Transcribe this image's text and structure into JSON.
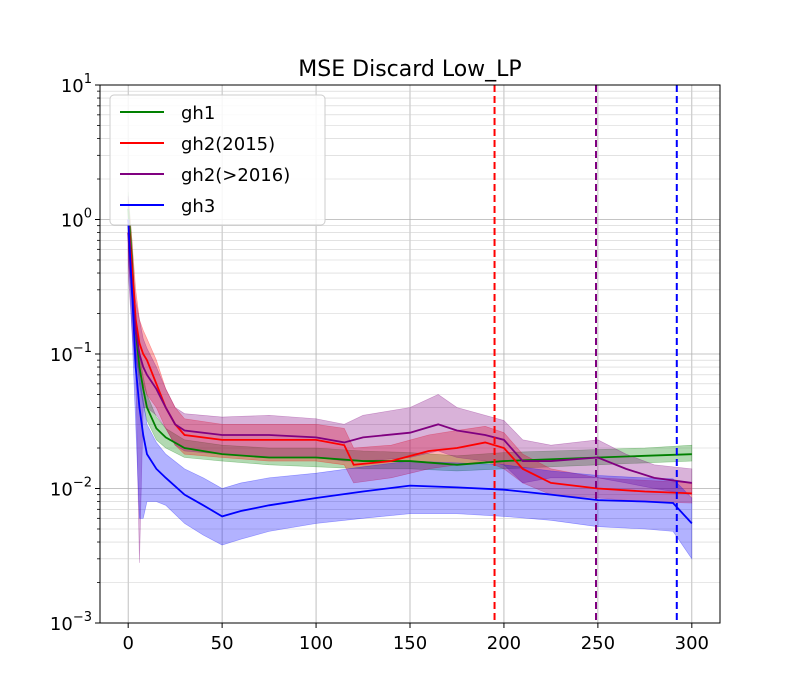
{
  "chart_data": {
    "type": "line",
    "title": "MSE Discard Low_LP",
    "xlabel": "",
    "ylabel": "",
    "xlim": [
      -15,
      315
    ],
    "ylim": [
      0.001,
      10
    ],
    "yscale": "log",
    "grid": true,
    "grid_minor": true,
    "legend_position": "top-left",
    "x_ticks": [
      0,
      50,
      100,
      150,
      200,
      250,
      300
    ],
    "x_tick_labels": [
      "0",
      "50",
      "100",
      "150",
      "200",
      "250",
      "300"
    ],
    "y_ticks": [
      0.001,
      0.01,
      0.1,
      1,
      10
    ],
    "y_tick_labels": [
      {
        "base": "10",
        "exp": "−3"
      },
      {
        "base": "10",
        "exp": "−2"
      },
      {
        "base": "10",
        "exp": "−1"
      },
      {
        "base": "10",
        "exp": "0"
      },
      {
        "base": "10",
        "exp": "1"
      }
    ],
    "series": [
      {
        "name": "gh1",
        "color": "#008000",
        "points": [
          [
            0,
            1.2
          ],
          [
            2,
            0.5
          ],
          [
            4,
            0.15
          ],
          [
            6,
            0.08
          ],
          [
            8,
            0.055
          ],
          [
            10,
            0.04
          ],
          [
            15,
            0.028
          ],
          [
            20,
            0.024
          ],
          [
            30,
            0.02
          ],
          [
            50,
            0.018
          ],
          [
            75,
            0.017
          ],
          [
            100,
            0.017
          ],
          [
            125,
            0.016
          ],
          [
            150,
            0.016
          ],
          [
            175,
            0.015
          ],
          [
            200,
            0.016
          ],
          [
            225,
            0.0165
          ],
          [
            250,
            0.017
          ],
          [
            275,
            0.0175
          ],
          [
            300,
            0.018
          ]
        ],
        "band": [
          [
            0.8,
            1.6
          ],
          [
            0.3,
            0.7
          ],
          [
            0.1,
            0.2
          ],
          [
            0.06,
            0.1
          ],
          [
            0.042,
            0.068
          ],
          [
            0.032,
            0.05
          ],
          [
            0.023,
            0.034
          ],
          [
            0.02,
            0.028
          ],
          [
            0.017,
            0.023
          ],
          [
            0.016,
            0.021
          ],
          [
            0.015,
            0.02
          ],
          [
            0.0145,
            0.02
          ],
          [
            0.014,
            0.019
          ],
          [
            0.014,
            0.0185
          ],
          [
            0.0135,
            0.0175
          ],
          [
            0.014,
            0.0185
          ],
          [
            0.0145,
            0.019
          ],
          [
            0.015,
            0.0195
          ],
          [
            0.0155,
            0.02
          ],
          [
            0.016,
            0.021
          ]
        ]
      },
      {
        "name": "gh2(2015)",
        "color": "#ff0000",
        "points": [
          [
            0,
            1.0
          ],
          [
            2,
            0.45
          ],
          [
            4,
            0.18
          ],
          [
            6,
            0.12
          ],
          [
            8,
            0.1
          ],
          [
            10,
            0.09
          ],
          [
            15,
            0.06
          ],
          [
            20,
            0.04
          ],
          [
            25,
            0.03
          ],
          [
            30,
            0.025
          ],
          [
            50,
            0.023
          ],
          [
            75,
            0.023
          ],
          [
            100,
            0.023
          ],
          [
            115,
            0.021
          ],
          [
            120,
            0.015
          ],
          [
            140,
            0.016
          ],
          [
            160,
            0.019
          ],
          [
            175,
            0.02
          ],
          [
            190,
            0.022
          ],
          [
            200,
            0.02
          ],
          [
            210,
            0.014
          ],
          [
            225,
            0.011
          ],
          [
            250,
            0.01
          ],
          [
            275,
            0.0095
          ],
          [
            300,
            0.0092
          ]
        ],
        "band": [
          [
            0.5,
            1.5
          ],
          [
            0.25,
            0.7
          ],
          [
            0.1,
            0.3
          ],
          [
            0.07,
            0.18
          ],
          [
            0.06,
            0.15
          ],
          [
            0.05,
            0.13
          ],
          [
            0.04,
            0.09
          ],
          [
            0.028,
            0.055
          ],
          [
            0.021,
            0.04
          ],
          [
            0.018,
            0.033
          ],
          [
            0.017,
            0.03
          ],
          [
            0.016,
            0.03
          ],
          [
            0.016,
            0.03
          ],
          [
            0.015,
            0.028
          ],
          [
            0.011,
            0.02
          ],
          [
            0.012,
            0.021
          ],
          [
            0.014,
            0.025
          ],
          [
            0.015,
            0.027
          ],
          [
            0.016,
            0.029
          ],
          [
            0.014,
            0.026
          ],
          [
            0.011,
            0.018
          ],
          [
            0.009,
            0.014
          ],
          [
            0.0085,
            0.012
          ],
          [
            0.008,
            0.0115
          ],
          [
            0.0078,
            0.011
          ]
        ]
      },
      {
        "name": "gh2(>2016)",
        "color": "#800080",
        "points": [
          [
            0,
            0.8
          ],
          [
            2,
            0.3
          ],
          [
            4,
            0.15
          ],
          [
            6,
            0.1
          ],
          [
            8,
            0.08
          ],
          [
            10,
            0.07
          ],
          [
            15,
            0.055
          ],
          [
            20,
            0.04
          ],
          [
            25,
            0.03
          ],
          [
            30,
            0.027
          ],
          [
            50,
            0.025
          ],
          [
            75,
            0.025
          ],
          [
            100,
            0.024
          ],
          [
            115,
            0.022
          ],
          [
            125,
            0.024
          ],
          [
            150,
            0.026
          ],
          [
            165,
            0.03
          ],
          [
            175,
            0.027
          ],
          [
            190,
            0.025
          ],
          [
            200,
            0.023
          ],
          [
            210,
            0.016
          ],
          [
            225,
            0.016
          ],
          [
            250,
            0.017
          ],
          [
            265,
            0.014
          ],
          [
            280,
            0.012
          ],
          [
            300,
            0.011
          ]
        ],
        "band": [
          [
            0.4,
            1.3
          ],
          [
            0.15,
            0.5
          ],
          [
            0.07,
            0.25
          ],
          [
            0.0028,
            0.18
          ],
          [
            0.04,
            0.13
          ],
          [
            0.04,
            0.11
          ],
          [
            0.035,
            0.08
          ],
          [
            0.028,
            0.055
          ],
          [
            0.021,
            0.04
          ],
          [
            0.019,
            0.036
          ],
          [
            0.018,
            0.034
          ],
          [
            0.017,
            0.035
          ],
          [
            0.017,
            0.033
          ],
          [
            0.016,
            0.03
          ],
          [
            0.016,
            0.035
          ],
          [
            0.017,
            0.04
          ],
          [
            0.019,
            0.05
          ],
          [
            0.017,
            0.04
          ],
          [
            0.016,
            0.035
          ],
          [
            0.015,
            0.032
          ],
          [
            0.011,
            0.023
          ],
          [
            0.012,
            0.021
          ],
          [
            0.012,
            0.023
          ],
          [
            0.011,
            0.018
          ],
          [
            0.01,
            0.015
          ],
          [
            0.009,
            0.014
          ]
        ]
      },
      {
        "name": "gh3",
        "color": "#0000ff",
        "points": [
          [
            0,
            1.0
          ],
          [
            2,
            0.3
          ],
          [
            4,
            0.08
          ],
          [
            6,
            0.04
          ],
          [
            8,
            0.025
          ],
          [
            10,
            0.018
          ],
          [
            15,
            0.014
          ],
          [
            20,
            0.012
          ],
          [
            30,
            0.009
          ],
          [
            40,
            0.0075
          ],
          [
            50,
            0.0062
          ],
          [
            60,
            0.0068
          ],
          [
            75,
            0.0075
          ],
          [
            100,
            0.0085
          ],
          [
            125,
            0.0095
          ],
          [
            150,
            0.0105
          ],
          [
            175,
            0.0102
          ],
          [
            200,
            0.0098
          ],
          [
            225,
            0.009
          ],
          [
            250,
            0.0082
          ],
          [
            275,
            0.008
          ],
          [
            290,
            0.0078
          ],
          [
            300,
            0.0055
          ]
        ],
        "band": [
          [
            0.6,
            1.5
          ],
          [
            0.15,
            0.5
          ],
          [
            0.03,
            0.14
          ],
          [
            0.006,
            0.07
          ],
          [
            0.006,
            0.045
          ],
          [
            0.008,
            0.03
          ],
          [
            0.008,
            0.022
          ],
          [
            0.0075,
            0.018
          ],
          [
            0.0055,
            0.014
          ],
          [
            0.0045,
            0.012
          ],
          [
            0.0038,
            0.01
          ],
          [
            0.0042,
            0.011
          ],
          [
            0.0048,
            0.012
          ],
          [
            0.0055,
            0.013
          ],
          [
            0.006,
            0.0145
          ],
          [
            0.0065,
            0.016
          ],
          [
            0.0065,
            0.0155
          ],
          [
            0.0062,
            0.015
          ],
          [
            0.0058,
            0.0135
          ],
          [
            0.0052,
            0.0125
          ],
          [
            0.005,
            0.012
          ],
          [
            0.0048,
            0.0118
          ],
          [
            0.003,
            0.0085
          ]
        ]
      }
    ],
    "vlines": [
      {
        "x": 195,
        "color": "#ff0000",
        "style": "dashed"
      },
      {
        "x": 249,
        "color": "#800080",
        "style": "dashed"
      },
      {
        "x": 292,
        "color": "#0000ff",
        "style": "dashed"
      }
    ]
  }
}
